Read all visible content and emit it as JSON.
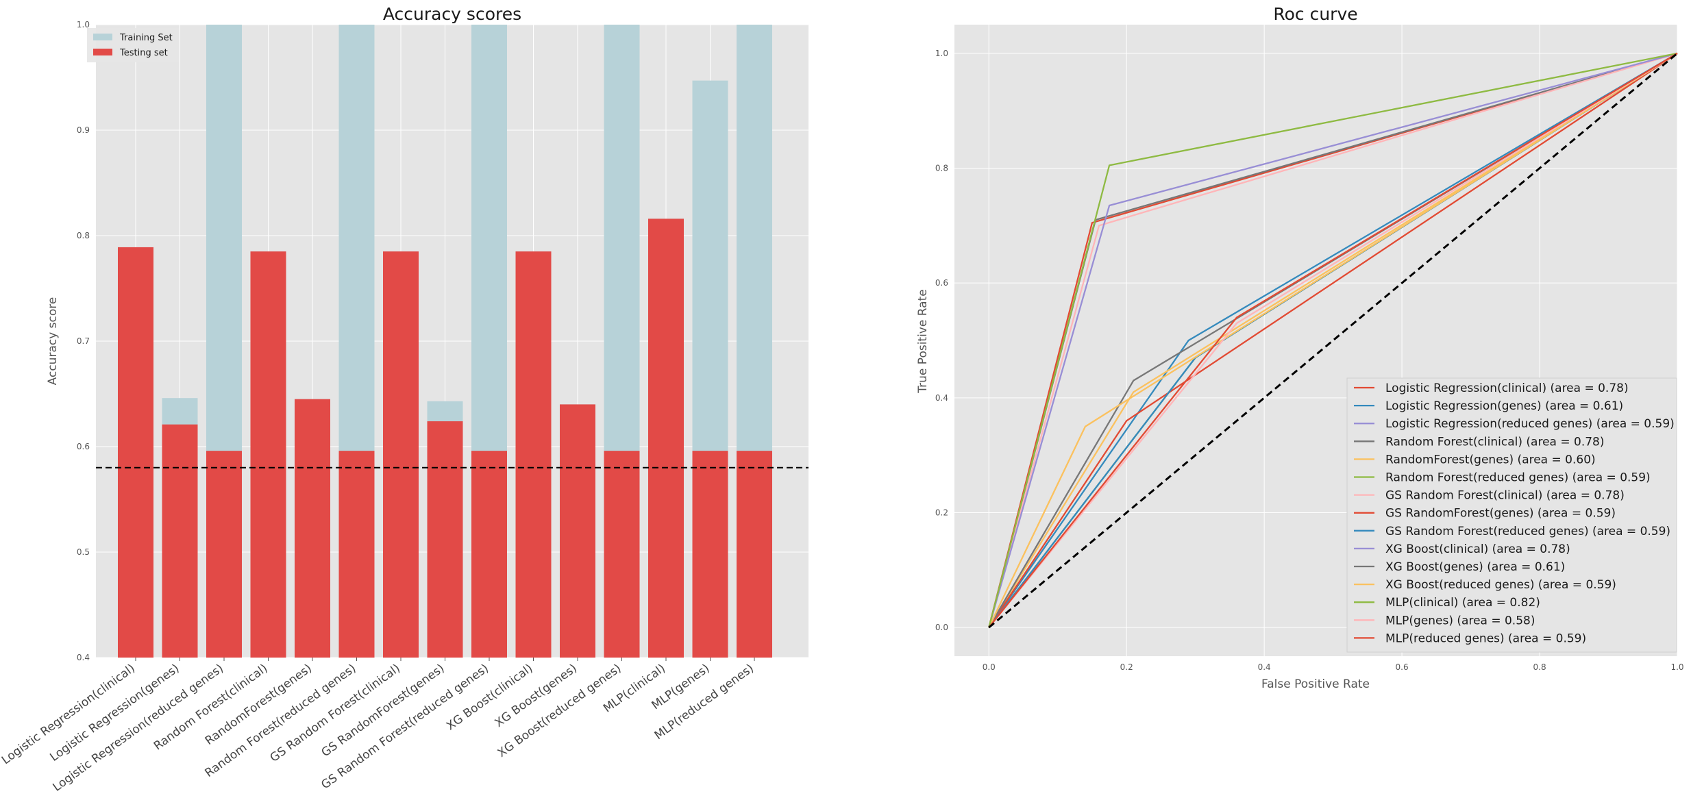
{
  "chart_data": [
    {
      "type": "bar",
      "title": "Accuracy scores",
      "xlabel": "",
      "ylabel": "Accuracy score",
      "ylim": [
        0.4,
        1.0
      ],
      "yticks": [
        "0.4",
        "0.5",
        "0.6",
        "0.7",
        "0.8",
        "0.9",
        "1.0"
      ],
      "categories": [
        "Logistic Regression(clinical)",
        "Logistic Regression(genes)",
        "Logistic Regression(reduced genes)",
        "Random Forest(clinical)",
        "RandomForest(genes)",
        "Random Forest(reduced genes)",
        "GS Random Forest(clinical)",
        "GS RandomForest(genes)",
        "GS Random Forest(reduced genes)",
        "XG Boost(clinical)",
        "XG Boost(genes)",
        "XG Boost(reduced genes)",
        "MLP(clinical)",
        "MLP(genes)",
        "MLP(reduced genes)"
      ],
      "series": [
        {
          "name": "Training Set",
          "color": "#b7d2d8",
          "values": [
            0.789,
            0.646,
            1.0,
            0.785,
            0.645,
            1.0,
            0.785,
            0.643,
            1.0,
            0.785,
            0.64,
            1.0,
            0.816,
            0.947,
            1.0
          ]
        },
        {
          "name": "Testing set",
          "color": "#e24a47",
          "values": [
            0.789,
            0.621,
            0.596,
            0.785,
            0.645,
            0.596,
            0.785,
            0.624,
            0.596,
            0.785,
            0.64,
            0.596,
            0.816,
            0.596,
            0.596
          ]
        }
      ],
      "reference_line": {
        "value": 0.58,
        "style": "dashed",
        "color": "#000000"
      },
      "legend_position": "top-left",
      "grid": true
    },
    {
      "type": "line",
      "title": "Roc curve",
      "xlabel": "False Positive Rate",
      "ylabel": "True Positive Rate",
      "xlim": [
        -0.05,
        1.0
      ],
      "ylim": [
        -0.05,
        1.05
      ],
      "xticks": [
        "0.0",
        "0.2",
        "0.4",
        "0.6",
        "0.8",
        "1.0"
      ],
      "yticks": [
        "0.0",
        "0.2",
        "0.4",
        "0.6",
        "0.8",
        "1.0"
      ],
      "legend_position": "lower-right",
      "grid": true,
      "diagonal": {
        "x": [
          0,
          1
        ],
        "y": [
          0,
          1
        ],
        "style": "dashed",
        "color": "#000000"
      },
      "series": [
        {
          "name": "Logistic Regression(clinical) (area = 0.78)",
          "color": "#e24a33",
          "x": [
            0,
            0.15,
            1
          ],
          "y": [
            0,
            0.705,
            1
          ]
        },
        {
          "name": "Logistic Regression(genes) (area = 0.61)",
          "color": "#348abd",
          "x": [
            0,
            0.29,
            1
          ],
          "y": [
            0,
            0.5,
            1
          ]
        },
        {
          "name": "Logistic Regression(reduced genes) (area = 0.59)",
          "color": "#988ed5",
          "x": [
            0,
            0.3,
            1
          ],
          "y": [
            0,
            0.47,
            1
          ]
        },
        {
          "name": "Random Forest(clinical) (area = 0.78)",
          "color": "#777777",
          "x": [
            0,
            0.155,
            1
          ],
          "y": [
            0,
            0.71,
            1
          ]
        },
        {
          "name": "RandomForest(genes) (area = 0.60)",
          "color": "#fbc15e",
          "x": [
            0,
            0.21,
            1
          ],
          "y": [
            0,
            0.41,
            1
          ]
        },
        {
          "name": "Random Forest(reduced genes) (area = 0.59)",
          "color": "#8eba42",
          "x": [
            0,
            0.3,
            1
          ],
          "y": [
            0,
            0.47,
            1
          ]
        },
        {
          "name": "GS Random Forest(clinical) (area = 0.78)",
          "color": "#ffb5b8",
          "x": [
            0,
            0.16,
            1
          ],
          "y": [
            0,
            0.7,
            1
          ]
        },
        {
          "name": "GS RandomForest(genes) (area = 0.59)",
          "color": "#e24a33",
          "x": [
            0,
            0.2,
            1
          ],
          "y": [
            0,
            0.36,
            1
          ]
        },
        {
          "name": "GS Random Forest(reduced genes) (area = 0.59)",
          "color": "#348abd",
          "x": [
            0,
            0.3,
            1
          ],
          "y": [
            0,
            0.47,
            1
          ]
        },
        {
          "name": "XG Boost(clinical) (area = 0.78)",
          "color": "#988ed5",
          "x": [
            0,
            0.175,
            1
          ],
          "y": [
            0,
            0.735,
            1
          ]
        },
        {
          "name": "XG Boost(genes) (area = 0.61)",
          "color": "#777777",
          "x": [
            0,
            0.21,
            1
          ],
          "y": [
            0,
            0.43,
            1
          ]
        },
        {
          "name": "XG Boost(reduced genes) (area = 0.59)",
          "color": "#fbc15e",
          "x": [
            0,
            0.14,
            1
          ],
          "y": [
            0,
            0.35,
            1
          ]
        },
        {
          "name": "MLP(clinical) (area = 0.82)",
          "color": "#8eba42",
          "x": [
            0,
            0.175,
            1
          ],
          "y": [
            0,
            0.805,
            1
          ]
        },
        {
          "name": "MLP(genes) (area = 0.58)",
          "color": "#ffb5b8",
          "x": [
            0,
            0.36,
            1
          ],
          "y": [
            0,
            0.53,
            1
          ]
        },
        {
          "name": "MLP(reduced genes) (area = 0.59)",
          "color": "#e24a33",
          "x": [
            0,
            0.36,
            1
          ],
          "y": [
            0,
            0.54,
            1
          ]
        }
      ]
    }
  ]
}
